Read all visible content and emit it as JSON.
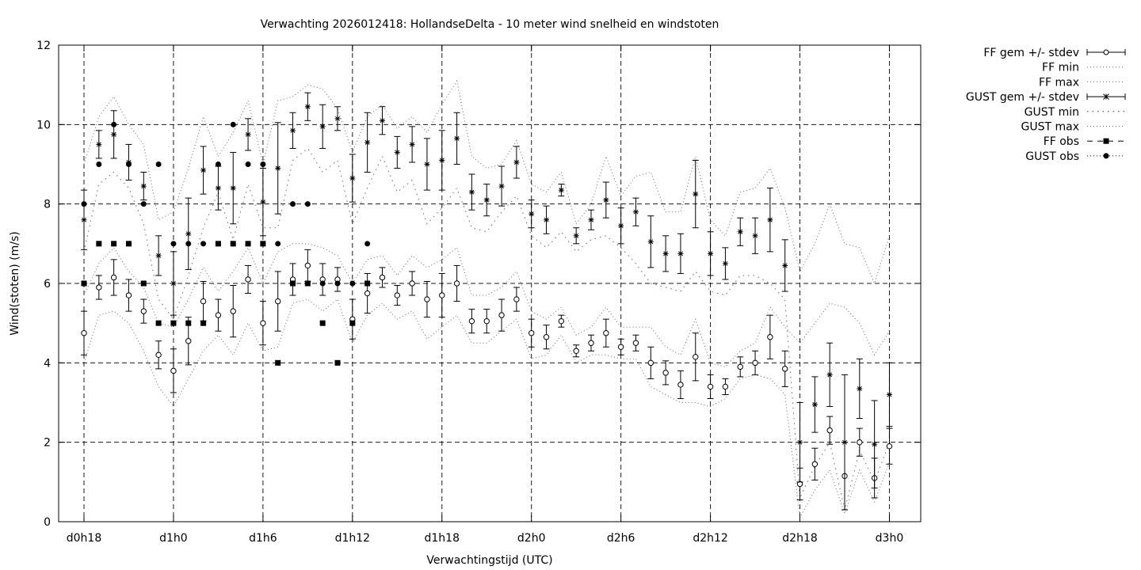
{
  "chart_data": {
    "type": "line",
    "title": "Verwachting 2026012418: HollandseDelta - 10 meter wind snelheid en windstoten",
    "xlabel": "Verwachtingstijd (UTC)",
    "ylabel": "Wind(stoten) (m/s)",
    "x_unit": "hours since d0h18 (0 = d0h18, 54 = d3h0)",
    "xlim": [
      -1.7,
      56.1
    ],
    "ylim": [
      0,
      12
    ],
    "y_ticks": [
      "0",
      "2",
      "4",
      "6",
      "8",
      "10",
      "12"
    ],
    "x_ticks": [
      {
        "x": 0,
        "label": "d0h18"
      },
      {
        "x": 6,
        "label": "d1h0"
      },
      {
        "x": 12,
        "label": "d1h6"
      },
      {
        "x": 18,
        "label": "d1h12"
      },
      {
        "x": 24,
        "label": "d1h18"
      },
      {
        "x": 30,
        "label": "d2h0"
      },
      {
        "x": 36,
        "label": "d2h6"
      },
      {
        "x": 42,
        "label": "d2h12"
      },
      {
        "x": 48,
        "label": "d2h18"
      },
      {
        "x": 54,
        "label": "d3h0"
      }
    ],
    "grid": true,
    "legend_position": "outside-right",
    "legend": [
      {
        "label": "FF gem +/- stdev",
        "style": "errorbar-circle"
      },
      {
        "label": "FF min",
        "style": "dotted"
      },
      {
        "label": "FF max",
        "style": "dotted"
      },
      {
        "label": "GUST gem +/- stdev",
        "style": "errorbar-star"
      },
      {
        "label": "GUST min",
        "style": "dotted-sparse"
      },
      {
        "label": "GUST max",
        "style": "dotted"
      },
      {
        "label": "FF obs",
        "style": "dash-square"
      },
      {
        "label": "GUST obs",
        "style": "dot-circle"
      }
    ],
    "ff_mean": {
      "x": [
        0,
        1,
        2,
        3,
        4,
        5,
        6,
        7,
        8,
        9,
        10,
        11,
        12,
        13,
        14,
        15,
        16,
        17,
        18,
        19,
        20,
        21,
        22,
        23,
        24,
        25,
        26,
        27,
        28,
        29,
        30,
        31,
        32,
        33,
        34,
        35,
        36,
        37,
        38,
        39,
        40,
        41,
        42,
        43,
        44,
        45,
        46,
        47,
        48,
        49,
        50,
        51,
        52,
        53,
        54
      ],
      "mean": [
        4.75,
        5.9,
        6.15,
        5.7,
        5.3,
        4.2,
        3.8,
        4.55,
        5.55,
        5.2,
        5.3,
        6.1,
        5.0,
        5.55,
        6.1,
        6.45,
        6.1,
        6.1,
        5.1,
        5.75,
        6.15,
        5.7,
        6.0,
        5.6,
        5.7,
        6.0,
        5.05,
        5.05,
        5.2,
        5.6,
        4.75,
        4.65,
        5.05,
        4.3,
        4.5,
        4.75,
        4.4,
        4.5,
        4.0,
        3.75,
        3.45,
        4.15,
        3.4,
        3.4,
        3.9,
        4.0,
        4.65,
        3.85,
        0.95,
        1.45,
        2.3,
        1.15,
        2.0,
        1.1,
        1.9
      ],
      "stdev": [
        0.55,
        0.3,
        0.45,
        0.4,
        0.3,
        0.35,
        0.55,
        0.6,
        0.5,
        0.4,
        0.65,
        0.35,
        0.55,
        0.75,
        0.4,
        0.4,
        0.4,
        0.3,
        0.5,
        0.5,
        0.25,
        0.25,
        0.3,
        0.45,
        0.55,
        0.45,
        0.3,
        0.3,
        0.4,
        0.3,
        0.35,
        0.3,
        0.15,
        0.15,
        0.2,
        0.35,
        0.2,
        0.2,
        0.4,
        0.3,
        0.35,
        0.6,
        0.3,
        0.2,
        0.25,
        0.3,
        0.55,
        0.45,
        0.4,
        0.4,
        0.35,
        0.85,
        0.35,
        0.5,
        0.45
      ]
    },
    "ff_min": {
      "x": [
        0,
        1,
        2,
        3,
        4,
        5,
        6,
        7,
        8,
        9,
        10,
        11,
        12,
        13,
        14,
        15,
        16,
        17,
        18,
        19,
        20,
        21,
        22,
        23,
        24,
        25,
        26,
        27,
        28,
        29,
        30,
        31,
        32,
        33,
        34,
        35,
        36,
        37,
        38,
        39,
        40,
        41,
        42,
        43,
        44,
        45,
        46,
        47,
        48,
        49,
        50,
        51,
        52,
        53,
        54
      ],
      "values": [
        4.0,
        5.2,
        5.3,
        5.0,
        4.3,
        3.4,
        2.9,
        3.6,
        4.3,
        4.7,
        4.2,
        5.0,
        4.3,
        4.4,
        5.5,
        5.6,
        5.3,
        5.6,
        4.5,
        5.2,
        5.5,
        5.1,
        5.3,
        4.6,
        4.9,
        5.2,
        4.5,
        4.5,
        4.8,
        5.1,
        4.1,
        4.2,
        4.7,
        4.0,
        4.2,
        4.2,
        4.1,
        4.1,
        3.4,
        3.2,
        3.0,
        3.0,
        2.9,
        3.1,
        3.6,
        3.7,
        3.6,
        3.2,
        0.1,
        0.8,
        1.3,
        0.2,
        1.3,
        0.5,
        1.5
      ]
    },
    "ff_max": {
      "x": [
        0,
        1,
        2,
        3,
        4,
        5,
        6,
        7,
        8,
        9,
        10,
        11,
        12,
        13,
        14,
        15,
        16,
        17,
        18,
        19,
        20,
        21,
        22,
        23,
        24,
        25,
        26,
        27,
        28,
        29,
        30,
        31,
        32,
        33,
        34,
        35,
        36,
        37,
        38,
        39,
        40,
        41,
        42,
        43,
        44,
        45,
        46,
        47,
        48,
        49,
        50,
        51,
        52,
        53,
        54
      ],
      "values": [
        5.7,
        6.5,
        6.9,
        6.3,
        5.9,
        5.0,
        4.9,
        5.6,
        6.4,
        5.8,
        6.3,
        6.9,
        6.0,
        6.8,
        7.0,
        7.0,
        6.9,
        6.7,
        6.0,
        6.6,
        6.7,
        6.2,
        6.7,
        6.4,
        6.6,
        6.9,
        5.7,
        5.7,
        5.9,
        6.3,
        5.3,
        5.1,
        5.4,
        4.7,
        4.9,
        5.4,
        4.9,
        4.9,
        4.9,
        4.4,
        4.2,
        5.1,
        4.0,
        3.9,
        4.3,
        4.5,
        5.4,
        4.9,
        4.5,
        5.0,
        5.5,
        5.4,
        5.0,
        4.2,
        4.8
      ]
    },
    "gust_mean": {
      "x": [
        0,
        1,
        2,
        3,
        4,
        5,
        6,
        7,
        8,
        9,
        10,
        11,
        12,
        13,
        14,
        15,
        16,
        17,
        18,
        19,
        20,
        21,
        22,
        23,
        24,
        25,
        26,
        27,
        28,
        29,
        30,
        31,
        32,
        33,
        34,
        35,
        36,
        37,
        38,
        39,
        40,
        41,
        42,
        43,
        44,
        45,
        46,
        47,
        48,
        49,
        50,
        51,
        52,
        53,
        54
      ],
      "mean": [
        7.6,
        9.5,
        9.75,
        9.05,
        8.45,
        6.7,
        6.0,
        7.25,
        8.85,
        8.4,
        8.4,
        9.75,
        8.05,
        8.9,
        9.85,
        10.45,
        9.95,
        10.15,
        8.65,
        9.55,
        10.1,
        9.3,
        9.5,
        9.0,
        9.1,
        9.65,
        8.3,
        8.1,
        8.45,
        9.05,
        7.75,
        7.6,
        8.35,
        7.2,
        7.6,
        8.1,
        7.45,
        7.8,
        7.05,
        6.75,
        6.75,
        8.25,
        6.75,
        6.5,
        7.3,
        7.2,
        7.6,
        6.45,
        2.0,
        2.95,
        3.7,
        2.0,
        3.35,
        1.95,
        3.2
      ],
      "stdev": [
        0.75,
        0.35,
        0.6,
        0.45,
        0.35,
        0.5,
        0.8,
        0.9,
        0.6,
        0.55,
        0.9,
        0.4,
        0.85,
        1.15,
        0.45,
        0.35,
        0.55,
        0.3,
        0.6,
        0.75,
        0.35,
        0.4,
        0.45,
        0.65,
        0.75,
        0.65,
        0.45,
        0.4,
        0.5,
        0.4,
        0.35,
        0.35,
        0.15,
        0.2,
        0.25,
        0.45,
        0.45,
        0.35,
        0.65,
        0.45,
        0.5,
        0.85,
        0.55,
        0.4,
        0.35,
        0.45,
        0.8,
        0.65,
        1.0,
        0.7,
        0.8,
        1.7,
        0.75,
        1.1,
        0.8
      ]
    },
    "gust_min": {
      "x": [
        0,
        1,
        2,
        3,
        4,
        5,
        6,
        7,
        8,
        9,
        10,
        11,
        12,
        13,
        14,
        15,
        16,
        17,
        18,
        19,
        20,
        21,
        22,
        23,
        24,
        25,
        26,
        27,
        28,
        29,
        30,
        31,
        32,
        33,
        34,
        35,
        36,
        37,
        38,
        39,
        40,
        41,
        42,
        43,
        44,
        45,
        46,
        47,
        48,
        49,
        50,
        51,
        52,
        53,
        54
      ],
      "values": [
        6.8,
        8.5,
        8.8,
        8.4,
        7.5,
        5.6,
        5.1,
        6.2,
        7.4,
        8.3,
        7.1,
        8.5,
        7.4,
        7.4,
        9.1,
        9.4,
        8.8,
        9.1,
        7.5,
        8.4,
        9.2,
        8.3,
        8.6,
        7.5,
        7.9,
        8.4,
        7.4,
        7.3,
        7.8,
        8.2,
        7.2,
        6.9,
        7.3,
        6.8,
        7.1,
        7.2,
        6.9,
        6.5,
        6.0,
        5.9,
        5.8,
        6.3,
        5.8,
        5.7,
        6.2,
        6.2,
        6.0,
        5.6,
        0.6,
        1.4,
        2.0,
        0.3,
        1.8,
        1.0,
        2.0
      ]
    },
    "gust_max": {
      "x": [
        0,
        1,
        2,
        3,
        4,
        5,
        6,
        7,
        8,
        9,
        10,
        11,
        12,
        13,
        14,
        15,
        16,
        17,
        18,
        19,
        20,
        21,
        22,
        23,
        24,
        25,
        26,
        27,
        28,
        29,
        30,
        31,
        32,
        33,
        34,
        35,
        36,
        37,
        38,
        39,
        40,
        41,
        42,
        43,
        44,
        45,
        46,
        47,
        48,
        49,
        50,
        51,
        52,
        53,
        54
      ],
      "values": [
        9.0,
        10.2,
        10.7,
        10.0,
        9.5,
        7.6,
        7.8,
        8.9,
        10.2,
        9.2,
        9.8,
        10.6,
        9.0,
        10.6,
        10.7,
        11.0,
        10.9,
        10.4,
        9.3,
        10.2,
        10.5,
        9.9,
        10.2,
        9.8,
        10.5,
        11.1,
        9.2,
        8.9,
        9.0,
        9.6,
        8.5,
        8.3,
        8.8,
        7.5,
        8.0,
        9.2,
        8.2,
        8.7,
        8.8,
        7.8,
        7.8,
        9.2,
        7.6,
        7.2,
        8.3,
        8.4,
        8.9,
        7.9,
        6.3,
        7.0,
        8.0,
        7.0,
        6.9,
        6.0,
        7.2
      ]
    },
    "ff_obs": {
      "x": [
        0,
        1,
        2,
        3,
        4,
        5,
        6,
        7,
        8,
        9,
        10,
        11,
        12,
        13,
        14,
        15,
        16,
        17,
        18,
        19
      ],
      "values": [
        6,
        7,
        7,
        7,
        6,
        5,
        5,
        5,
        5,
        7,
        7,
        7,
        7,
        4,
        6,
        6,
        5,
        4,
        5,
        6
      ]
    },
    "gust_obs": {
      "x": [
        0,
        1,
        2,
        3,
        4,
        5,
        6,
        7,
        8,
        9,
        10,
        11,
        12,
        13,
        14,
        15,
        16,
        17,
        18,
        19
      ],
      "values": [
        8,
        9,
        10,
        9,
        8,
        9,
        7,
        7,
        7,
        9,
        10,
        9,
        9,
        7,
        8,
        8,
        6,
        6,
        6,
        7
      ]
    }
  }
}
